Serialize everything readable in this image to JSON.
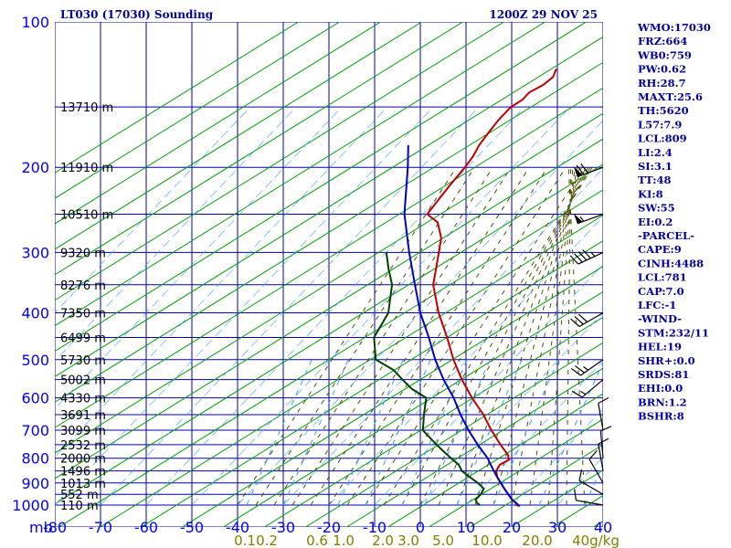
{
  "header": {
    "station_title": "LT030 (17030) Sounding",
    "datetime": "1200Z 29 NOV 25"
  },
  "indices": [
    "WMO:17030",
    "FRZ:664",
    "WB0:759",
    "PW:0.62",
    "RH:28.7",
    "MAXT:25.6",
    "TH:5620",
    "L57:7.9",
    "LCL:809",
    "LI:2.4",
    "SI:3.1",
    "TT:48",
    "KI:8",
    "SW:55",
    "EI:0.2",
    "-PARCEL-",
    "CAPE:9",
    "CINH:4488",
    "LCL:781",
    "CAP:7.0",
    "LFC:-1",
    "-WIND-",
    "STM:232/11",
    "HEL:19",
    "SHR+:0.0",
    "SRDS:81",
    "EHI:0.0",
    "BRN:1.2",
    "BSHR:8"
  ],
  "colors": {
    "grid": "#0000b0",
    "dry_adiabat": "#00a000",
    "moist_adiabat": "#505000",
    "mixing_ratio": "#40a0ff",
    "temperature": "#c00000",
    "dewpoint": "#004000",
    "parcel": "#0000c0",
    "title": "#0000a0"
  },
  "chart_data": {
    "type": "line",
    "title": "LT030 (17030) Sounding",
    "xlabel": "",
    "ylabel": "mb",
    "xlim": [
      -80,
      40
    ],
    "ylim": [
      1000,
      100
    ],
    "y_scale": "log",
    "x_axis_corner_label": "mb",
    "pressure_ticks": [
      100,
      200,
      300,
      400,
      500,
      600,
      700,
      800,
      900,
      1000
    ],
    "temperature_ticks": [
      -80,
      -70,
      -60,
      -50,
      -40,
      -30,
      -20,
      -10,
      0,
      10,
      20,
      30,
      40
    ],
    "temperature_tick_labels": [
      "-80",
      "-70",
      "-60",
      "-50",
      "-40",
      "-30",
      "-20",
      "-10",
      "0",
      "10",
      "20",
      "30",
      "40"
    ],
    "height_labels": [
      {
        "p": 150,
        "text": "13710 m"
      },
      {
        "p": 200,
        "text": "11910 m"
      },
      {
        "p": 250,
        "text": "10510 m"
      },
      {
        "p": 300,
        "text": "9320 m"
      },
      {
        "p": 350,
        "text": "8276 m"
      },
      {
        "p": 400,
        "text": "7350 m"
      },
      {
        "p": 450,
        "text": "6499 m"
      },
      {
        "p": 500,
        "text": "5730 m"
      },
      {
        "p": 550,
        "text": "5002 m"
      },
      {
        "p": 600,
        "text": "4330 m"
      },
      {
        "p": 650,
        "text": "3691 m"
      },
      {
        "p": 700,
        "text": "3099 m"
      },
      {
        "p": 750,
        "text": "2532 m"
      },
      {
        "p": 800,
        "text": "2000 m"
      },
      {
        "p": 850,
        "text": "1496 m"
      },
      {
        "p": 900,
        "text": "1013 m"
      },
      {
        "p": 950,
        "text": "552 m"
      },
      {
        "p": 1000,
        "text": "110 m"
      }
    ],
    "mixing_ratio_labels": [
      "0.1",
      "0.2",
      "0.6",
      "1.0",
      "2.0",
      "3.0",
      "5.0",
      "10.0",
      "20.0",
      "40g/kg"
    ],
    "series": [
      {
        "key": "temperature",
        "points": [
          [
            1005,
            22
          ],
          [
            1000,
            21
          ],
          [
            990,
            20.5
          ],
          [
            975,
            19
          ],
          [
            950,
            17
          ],
          [
            925,
            15
          ],
          [
            900,
            13
          ],
          [
            875,
            11
          ],
          [
            850,
            9.5
          ],
          [
            825,
            9
          ],
          [
            805,
            10
          ],
          [
            800,
            9.5
          ],
          [
            790,
            9
          ],
          [
            750,
            5
          ],
          [
            700,
            0
          ],
          [
            650,
            -5
          ],
          [
            600,
            -11
          ],
          [
            550,
            -17
          ],
          [
            500,
            -23
          ],
          [
            450,
            -29
          ],
          [
            400,
            -36
          ],
          [
            350,
            -43
          ],
          [
            300,
            -48.5
          ],
          [
            280,
            -51
          ],
          [
            260,
            -55
          ],
          [
            250,
            -59
          ],
          [
            235,
            -59.5
          ],
          [
            220,
            -60
          ],
          [
            200,
            -60.5
          ],
          [
            190,
            -61
          ],
          [
            180,
            -62
          ],
          [
            170,
            -62.5
          ],
          [
            160,
            -63
          ],
          [
            150,
            -63
          ],
          [
            145,
            -62
          ],
          [
            140,
            -62
          ],
          [
            135,
            -60.5
          ],
          [
            130,
            -60
          ],
          [
            125,
            -61
          ]
        ]
      },
      {
        "key": "dewpoint",
        "points": [
          [
            1000,
            13
          ],
          [
            990,
            12
          ],
          [
            975,
            11
          ],
          [
            950,
            11
          ],
          [
            925,
            10.5
          ],
          [
            900,
            8
          ],
          [
            875,
            5
          ],
          [
            850,
            2
          ],
          [
            825,
            0
          ],
          [
            800,
            -3
          ],
          [
            775,
            -6
          ],
          [
            750,
            -9
          ],
          [
            700,
            -15
          ],
          [
            650,
            -18
          ],
          [
            600,
            -21
          ],
          [
            575,
            -26
          ],
          [
            550,
            -30
          ],
          [
            525,
            -34
          ],
          [
            500,
            -40
          ],
          [
            450,
            -45
          ],
          [
            400,
            -47
          ],
          [
            350,
            -52
          ],
          [
            325,
            -56
          ],
          [
            300,
            -60
          ]
        ]
      },
      {
        "key": "parcel",
        "points": [
          [
            1005,
            22
          ],
          [
            1000,
            21.5
          ],
          [
            975,
            19
          ],
          [
            950,
            17
          ],
          [
            925,
            15
          ],
          [
            900,
            13
          ],
          [
            875,
            11
          ],
          [
            850,
            9
          ],
          [
            825,
            7
          ],
          [
            800,
            5
          ],
          [
            750,
            0
          ],
          [
            700,
            -5
          ],
          [
            650,
            -10
          ],
          [
            600,
            -15
          ],
          [
            550,
            -21
          ],
          [
            500,
            -27
          ],
          [
            450,
            -33
          ],
          [
            400,
            -40
          ],
          [
            350,
            -47
          ],
          [
            300,
            -55
          ],
          [
            250,
            -64
          ],
          [
            200,
            -73
          ],
          [
            180,
            -77.5
          ]
        ]
      }
    ],
    "wind_barbs": [
      {
        "p": 200,
        "dir": 250,
        "speed": 70
      },
      {
        "p": 250,
        "dir": 250,
        "speed": 55
      },
      {
        "p": 300,
        "dir": 245,
        "speed": 45
      },
      {
        "p": 400,
        "dir": 240,
        "speed": 30
      },
      {
        "p": 500,
        "dir": 235,
        "speed": 25
      },
      {
        "p": 550,
        "dir": 230,
        "speed": 15
      },
      {
        "p": 700,
        "dir": 350,
        "speed": 10
      },
      {
        "p": 800,
        "dir": 355,
        "speed": 10
      },
      {
        "p": 850,
        "dir": 350,
        "speed": 10
      },
      {
        "p": 900,
        "dir": 330,
        "speed": 10
      },
      {
        "p": 950,
        "dir": 300,
        "speed": 10
      },
      {
        "p": 1000,
        "dir": 280,
        "speed": 10
      }
    ]
  }
}
